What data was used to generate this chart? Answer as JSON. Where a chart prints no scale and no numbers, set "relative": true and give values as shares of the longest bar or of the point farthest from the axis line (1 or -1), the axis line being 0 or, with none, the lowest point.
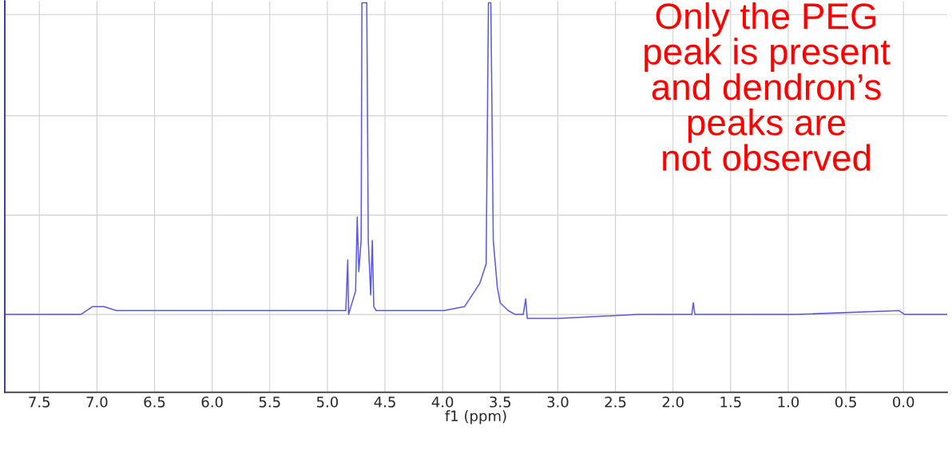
{
  "chart_data": {
    "type": "line",
    "relative": true,
    "xlabel": "f1 (ppm)",
    "annotations": [
      "Only the PEG\npeak is present\nand dendron’s\npeaks are\nnot observed"
    ],
    "xlim": [
      7.8,
      -0.38
    ],
    "xticks": [
      {
        "value": 7.5,
        "label": "7.5"
      },
      {
        "value": 7.0,
        "label": "7.0"
      },
      {
        "value": 6.5,
        "label": "6.5"
      },
      {
        "value": 6.0,
        "label": "6.0"
      },
      {
        "value": 5.5,
        "label": "5.5"
      },
      {
        "value": 5.0,
        "label": "5.0"
      },
      {
        "value": 4.5,
        "label": "4.5"
      },
      {
        "value": 4.0,
        "label": "4.0"
      },
      {
        "value": 3.5,
        "label": "3.5"
      },
      {
        "value": 3.0,
        "label": "3.0"
      },
      {
        "value": 2.5,
        "label": "2.5"
      },
      {
        "value": 2.0,
        "label": "2.0"
      },
      {
        "value": 1.5,
        "label": "1.5"
      },
      {
        "value": 1.0,
        "label": "1.0"
      },
      {
        "value": 0.5,
        "label": "0.5"
      },
      {
        "value": 0,
        "label": "0.0"
      }
    ],
    "grid": true,
    "legend": false,
    "tick_labels": "x",
    "marker": "none",
    "line_style": "solid",
    "series": [
      {
        "color": "#5a5ae0",
        "x": [
          7.79,
          7.14,
          7.04,
          6.94,
          6.83,
          6.56,
          5.05,
          4.91,
          4.84,
          4.823,
          4.816,
          4.796,
          4.755,
          4.741,
          4.727,
          4.707,
          4.7,
          4.658,
          4.645,
          4.624,
          4.61,
          4.597,
          4.576,
          4.5,
          4.23,
          3.99,
          3.81,
          3.677,
          3.622,
          3.602,
          3.581,
          3.56,
          3.525,
          3.5,
          3.43,
          3.37,
          3.3,
          3.279,
          3.265,
          2.99,
          2.3,
          1.837,
          1.824,
          1.81,
          1.62,
          0.93,
          0.04,
          -0.01,
          -0.1,
          -0.38
        ],
        "values": [
          0.2,
          0.2,
          0.22,
          0.22,
          0.21,
          0.21,
          0.21,
          0.21,
          0.21,
          0.34,
          0.2,
          0.22,
          0.26,
          0.45,
          0.31,
          0.39,
          1.0,
          1.0,
          0.39,
          0.25,
          0.39,
          0.22,
          0.21,
          0.21,
          0.21,
          0.21,
          0.22,
          0.28,
          0.33,
          1.0,
          1.0,
          0.39,
          0.27,
          0.23,
          0.21,
          0.2,
          0.2,
          0.24,
          0.19,
          0.19,
          0.2,
          0.2,
          0.23,
          0.2,
          0.2,
          0.2,
          0.21,
          0.2,
          0.2,
          0.2
        ]
      }
    ]
  }
}
